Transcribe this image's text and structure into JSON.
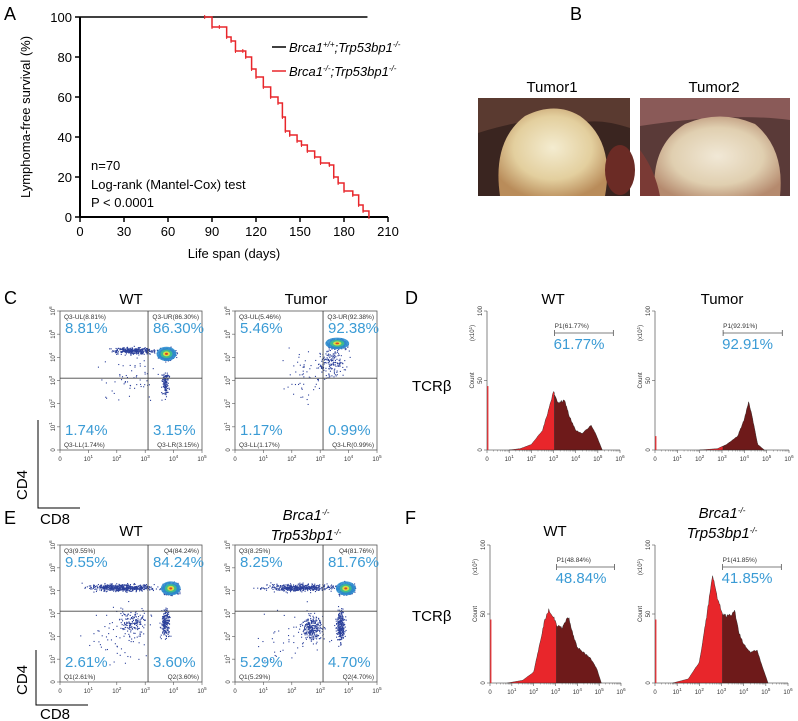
{
  "panels": {
    "A": "A",
    "B": "B",
    "C": "C",
    "D": "D",
    "E": "E",
    "F": "F"
  },
  "chart_data": [
    {
      "type": "line",
      "panel": "A",
      "xlabel": "Life span (days)",
      "ylabel": "Lymphoma-free survival (%)",
      "xlim": [
        0,
        210
      ],
      "ylim": [
        0,
        100
      ],
      "xticks": [
        "0",
        "30",
        "60",
        "90",
        "120",
        "150",
        "180",
        "210"
      ],
      "yticks": [
        "0",
        "20",
        "40",
        "60",
        "80",
        "100"
      ],
      "legend_position": "top-right",
      "series": [
        {
          "name_parts": [
            "Brca1",
            "+/+",
            ";Trp53bp1",
            "-/-"
          ],
          "color": "#000000",
          "x": [
            0,
            196
          ],
          "y": [
            100,
            100
          ]
        },
        {
          "name_parts": [
            "Brca1",
            "-/-",
            ";Trp53bp1",
            "-/-"
          ],
          "color": "#e8262b",
          "x": [
            85,
            90,
            95,
            100,
            103,
            106,
            111,
            113,
            117,
            120,
            125,
            130,
            135,
            138,
            140,
            143,
            148,
            151,
            155,
            160,
            164,
            170,
            173,
            176,
            180,
            186,
            190,
            193,
            197
          ],
          "y": [
            100,
            95,
            95,
            90,
            88,
            83,
            83,
            80,
            74,
            70,
            65,
            60,
            57,
            50,
            43,
            41,
            38,
            36,
            33,
            30,
            27,
            26,
            20,
            17,
            13,
            11,
            6,
            3,
            0
          ]
        }
      ],
      "annotations": [
        "n=70",
        "Log-rank (Mantel-Cox) test",
        "P < 0.0001"
      ]
    }
  ],
  "photos": {
    "tumor1": "Tumor1",
    "tumor2": "Tumor2"
  },
  "flow": {
    "x_ticks": [
      "0",
      "10",
      "10",
      "10",
      "10",
      "10"
    ],
    "x_tick_exps": [
      "",
      "1",
      "2",
      "3",
      "4",
      "5"
    ],
    "y_ticks": [
      "0",
      "10",
      "10",
      "10",
      "10",
      "10",
      "10"
    ],
    "y_tick_exps": [
      "",
      "1",
      "2",
      "3",
      "4",
      "5",
      "6"
    ],
    "ylabel": "CD4",
    "xlabel": "CD8",
    "C": [
      {
        "title": "WT",
        "gates": [
          "Q3-UL(8.81%)",
          "Q3-UR(86.30%)",
          "Q3-LL(1.74%)",
          "Q3-LR(3.15%)"
        ],
        "pcts": [
          "8.81%",
          "86.30%",
          "1.74%",
          "3.15%"
        ]
      },
      {
        "title": "Tumor",
        "gates": [
          "Q3-UL(5.46%)",
          "Q3-UR(92.38%)",
          "Q3-LL(1.17%)",
          "Q3-LR(0.99%)"
        ],
        "pcts": [
          "5.46%",
          "92.38%",
          "1.17%",
          "0.99%"
        ]
      }
    ],
    "E": [
      {
        "title": "WT",
        "gates": [
          "Q3(9.55%)",
          "Q4(84.24%)",
          "Q1(2.61%)",
          "Q2(3.60%)"
        ],
        "pcts": [
          "9.55%",
          "84.24%",
          "2.61%",
          "3.60%"
        ]
      },
      {
        "title_parts": [
          "Brca1",
          "-/-",
          "Trp53bp1",
          "-/-"
        ],
        "gates": [
          "Q3(8.25%)",
          "Q4(81.76%)",
          "Q1(5.29%)",
          "Q2(4.70%)"
        ],
        "pcts": [
          "8.25%",
          "81.76%",
          "5.29%",
          "4.70%"
        ]
      }
    ]
  },
  "hist": {
    "ylabel": "Count",
    "yunit": "(x10",
    "yunit_exp": "1",
    "yunit_close": ")",
    "y_ticks": [
      "0",
      "50",
      "100"
    ],
    "x_ticks": [
      "0",
      "10",
      "10",
      "10",
      "10",
      "10",
      "10"
    ],
    "x_tick_exps": [
      "",
      "1",
      "2",
      "3",
      "4",
      "5",
      "6"
    ],
    "marker": "TCRβ",
    "D": [
      {
        "title": "WT",
        "gate": "P1(61.77%)",
        "pct": "61.77%",
        "profile": [
          [
            1,
            0
          ],
          [
            1.5,
            1
          ],
          [
            2,
            4
          ],
          [
            2.5,
            14
          ],
          [
            2.8,
            30
          ],
          [
            3,
            42
          ],
          [
            3.2,
            34
          ],
          [
            3.5,
            36
          ],
          [
            3.7,
            25
          ],
          [
            4,
            14
          ],
          [
            4.3,
            12
          ],
          [
            4.7,
            18
          ],
          [
            4.9,
            12
          ],
          [
            5.2,
            0
          ]
        ]
      },
      {
        "title": "Tumor",
        "gate": "P1(92.91%)",
        "pct": "92.91%",
        "profile": [
          [
            2,
            0
          ],
          [
            2.8,
            1
          ],
          [
            3.2,
            4
          ],
          [
            3.7,
            10
          ],
          [
            4,
            22
          ],
          [
            4.2,
            35
          ],
          [
            4.4,
            20
          ],
          [
            4.6,
            4
          ],
          [
            4.9,
            0
          ]
        ]
      }
    ],
    "F": [
      {
        "title": "WT",
        "gate": "P1(48.84%)",
        "pct": "48.84%",
        "profile": [
          [
            0.8,
            0
          ],
          [
            1.5,
            2
          ],
          [
            2,
            8
          ],
          [
            2.3,
            30
          ],
          [
            2.5,
            45
          ],
          [
            2.7,
            53
          ],
          [
            2.9,
            48
          ],
          [
            3.05,
            42
          ],
          [
            3.3,
            40
          ],
          [
            3.6,
            48
          ],
          [
            3.8,
            35
          ],
          [
            4,
            26
          ],
          [
            4.3,
            22
          ],
          [
            4.6,
            18
          ],
          [
            4.9,
            10
          ],
          [
            5.1,
            0
          ]
        ]
      },
      {
        "title_parts": [
          "Brca1",
          "-/-",
          "Trp53bp1",
          "-/-"
        ],
        "gate": "P1(41.85%)",
        "pct": "41.85%",
        "profile": [
          [
            0.8,
            0
          ],
          [
            1.5,
            3
          ],
          [
            2,
            15
          ],
          [
            2.3,
            45
          ],
          [
            2.6,
            78
          ],
          [
            2.8,
            62
          ],
          [
            3.05,
            50
          ],
          [
            3.3,
            48
          ],
          [
            3.6,
            52
          ],
          [
            3.8,
            36
          ],
          [
            4,
            28
          ],
          [
            4.3,
            22
          ],
          [
            4.6,
            24
          ],
          [
            4.8,
            14
          ],
          [
            5.1,
            0
          ]
        ]
      }
    ]
  }
}
